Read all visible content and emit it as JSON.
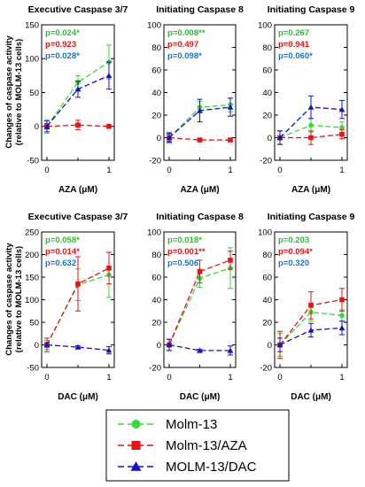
{
  "figure": {
    "y_label_lines": [
      "Changes of caspase activity",
      "(relative to MOLM-13 cells)"
    ]
  },
  "colors": {
    "green": "#33dd33",
    "red": "#ee1111",
    "blue": "#1111cc",
    "stat_blue": "#1177cc"
  },
  "legend": {
    "entries": [
      {
        "label": "Molm-13",
        "color": "#33dd33",
        "marker": "circle"
      },
      {
        "label": "Molm-13/AZA",
        "color": "#ee1111",
        "marker": "square"
      },
      {
        "label": "MOLM-13/DAC",
        "color": "#1111cc",
        "marker": "triangle"
      }
    ]
  },
  "chart_data": [
    {
      "type": "line",
      "title": "Executive Caspase 3/7",
      "xlabel": "AZA (μM)",
      "x": [
        0,
        0.5,
        1
      ],
      "x_ticks": [
        "0",
        "1"
      ],
      "ylim": [
        -50,
        150
      ],
      "y_ticks": [
        -50,
        0,
        50,
        100,
        150
      ],
      "stats": [
        {
          "text": "p=0.024*",
          "color": "#33bb33"
        },
        {
          "text": "p=0.923",
          "color": "#ee1111"
        },
        {
          "text": "p=0.028*",
          "color": "#1177cc"
        }
      ],
      "series": [
        {
          "values": [
            0,
            65,
            95
          ],
          "errors": [
            10,
            10,
            25
          ],
          "color": "#33dd33",
          "marker": "circle"
        },
        {
          "values": [
            0,
            2,
            0
          ],
          "errors": [
            4,
            7,
            0
          ],
          "color": "#ee1111",
          "marker": "square"
        },
        {
          "values": [
            0,
            55,
            75
          ],
          "errors": [
            8,
            12,
            20
          ],
          "color": "#1111cc",
          "marker": "triangle"
        }
      ]
    },
    {
      "type": "line",
      "title": "Initiating Caspase 8",
      "xlabel": "AZA (μM)",
      "x": [
        0,
        0.5,
        1
      ],
      "x_ticks": [
        "0",
        "1"
      ],
      "ylim": [
        -20,
        100
      ],
      "y_ticks": [
        -20,
        0,
        20,
        40,
        60,
        80,
        100
      ],
      "stats": [
        {
          "text": "p=0.008**",
          "color": "#33bb33"
        },
        {
          "text": "p=0.497",
          "color": "#ee1111"
        },
        {
          "text": "p=0.098*",
          "color": "#1177cc"
        }
      ],
      "series": [
        {
          "values": [
            0,
            27,
            29
          ],
          "errors": [
            5,
            5,
            6
          ],
          "color": "#33dd33",
          "marker": "circle"
        },
        {
          "values": [
            0,
            -2,
            -2
          ],
          "errors": [
            3,
            1,
            1
          ],
          "color": "#ee1111",
          "marker": "square"
        },
        {
          "values": [
            0,
            24,
            27
          ],
          "errors": [
            4,
            10,
            8
          ],
          "color": "#1111cc",
          "marker": "triangle"
        }
      ]
    },
    {
      "type": "line",
      "title": "Initiating Caspase 9",
      "xlabel": "AZA (μM)",
      "x": [
        0,
        0.5,
        1
      ],
      "x_ticks": [
        "0",
        "1"
      ],
      "ylim": [
        -20,
        100
      ],
      "y_ticks": [
        -20,
        0,
        20,
        40,
        60,
        80,
        100
      ],
      "stats": [
        {
          "text": "p=0.267",
          "color": "#33bb33"
        },
        {
          "text": "p=0.941",
          "color": "#ee1111"
        },
        {
          "text": "p=0.060*",
          "color": "#1177cc"
        }
      ],
      "series": [
        {
          "values": [
            0,
            11,
            9
          ],
          "errors": [
            6,
            6,
            5
          ],
          "color": "#33dd33",
          "marker": "circle"
        },
        {
          "values": [
            0,
            0,
            3
          ],
          "errors": [
            6,
            6,
            4
          ],
          "color": "#ee1111",
          "marker": "square"
        },
        {
          "values": [
            0,
            27,
            25
          ],
          "errors": [
            6,
            10,
            8
          ],
          "color": "#1111cc",
          "marker": "triangle"
        }
      ]
    },
    {
      "type": "line",
      "title": "Executive Caspase 3/7",
      "xlabel": "DAC (μM)",
      "x": [
        0,
        0.5,
        1
      ],
      "x_ticks": [
        "0",
        "1"
      ],
      "ylim": [
        -50,
        250
      ],
      "y_ticks": [
        -50,
        0,
        50,
        100,
        150,
        200,
        250
      ],
      "stats": [
        {
          "text": "p=0.058*",
          "color": "#33bb33"
        },
        {
          "text": "p=0.014*",
          "color": "#ee1111"
        },
        {
          "text": "p=0.632",
          "color": "#1177cc"
        }
      ],
      "series": [
        {
          "values": [
            0,
            133,
            155
          ],
          "errors": [
            10,
            35,
            50
          ],
          "color": "#33dd33",
          "marker": "circle"
        },
        {
          "values": [
            0,
            135,
            170
          ],
          "errors": [
            15,
            60,
            35
          ],
          "color": "#ee1111",
          "marker": "square"
        },
        {
          "values": [
            0,
            -5,
            -12
          ],
          "errors": [
            5,
            3,
            8
          ],
          "color": "#1111cc",
          "marker": "triangle"
        }
      ]
    },
    {
      "type": "line",
      "title": "Initiating Caspase 8",
      "xlabel": "DAC (μM)",
      "x": [
        0,
        0.5,
        1
      ],
      "x_ticks": [
        "0",
        "1"
      ],
      "ylim": [
        -20,
        100
      ],
      "y_ticks": [
        -20,
        0,
        20,
        40,
        60,
        80,
        100
      ],
      "stats": [
        {
          "text": "p=0.018*",
          "color": "#33bb33"
        },
        {
          "text": "p=0.001**",
          "color": "#ee1111"
        },
        {
          "text": "p=0.506",
          "color": "#1177cc"
        }
      ],
      "series": [
        {
          "values": [
            0,
            59,
            68
          ],
          "errors": [
            5,
            8,
            18
          ],
          "color": "#33dd33",
          "marker": "circle"
        },
        {
          "values": [
            0,
            65,
            75
          ],
          "errors": [
            5,
            10,
            8
          ],
          "color": "#ee1111",
          "marker": "square"
        },
        {
          "values": [
            0,
            -5,
            -5
          ],
          "errors": [
            5,
            1,
            4
          ],
          "color": "#1111cc",
          "marker": "triangle"
        }
      ]
    },
    {
      "type": "line",
      "title": "Initiating Caspase 9",
      "xlabel": "DAC (μM)",
      "x": [
        0,
        0.5,
        1
      ],
      "x_ticks": [
        "0",
        "1"
      ],
      "ylim": [
        -20,
        100
      ],
      "y_ticks": [
        -20,
        0,
        20,
        40,
        60,
        80,
        100
      ],
      "stats": [
        {
          "text": "p=0.203",
          "color": "#33bb33"
        },
        {
          "text": "p=0.094*",
          "color": "#ee1111"
        },
        {
          "text": "p=0.320",
          "color": "#1177cc"
        }
      ],
      "series": [
        {
          "values": [
            0,
            29,
            26
          ],
          "errors": [
            10,
            8,
            5
          ],
          "color": "#33dd33",
          "marker": "circle"
        },
        {
          "values": [
            0,
            35,
            40
          ],
          "errors": [
            12,
            12,
            10
          ],
          "color": "#ee1111",
          "marker": "square"
        },
        {
          "values": [
            0,
            13,
            15
          ],
          "errors": [
            6,
            6,
            6
          ],
          "color": "#1111cc",
          "marker": "triangle"
        }
      ]
    }
  ]
}
